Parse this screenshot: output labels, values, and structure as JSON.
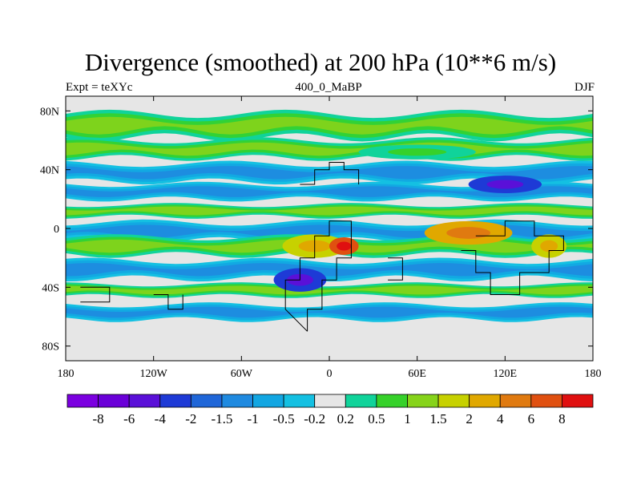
{
  "title": "Divergence (smoothed) at 200 hPa (10**6 m/s)",
  "subtitle_left": "Expt = teXYc",
  "subtitle_center": "400_0_MaBP",
  "subtitle_right": "DJF",
  "map": {
    "projection": "cylindrical-equidistant",
    "lon_range": [
      -180,
      180
    ],
    "lat_range": [
      -90,
      90
    ],
    "background_color": "#e6e6e6",
    "x_ticks": [
      {
        "value": -180,
        "label": "180"
      },
      {
        "value": -120,
        "label": "120W"
      },
      {
        "value": -60,
        "label": "60W"
      },
      {
        "value": 0,
        "label": "0"
      },
      {
        "value": 60,
        "label": "60E"
      },
      {
        "value": 120,
        "label": "120E"
      },
      {
        "value": 180,
        "label": "180"
      }
    ],
    "y_ticks": [
      {
        "value": 80,
        "label": "80N"
      },
      {
        "value": 40,
        "label": "40N"
      },
      {
        "value": 0,
        "label": "0"
      },
      {
        "value": -40,
        "label": "40S"
      },
      {
        "value": -80,
        "label": "80S"
      }
    ],
    "bands": [
      {
        "lat": [
          62,
          78
        ],
        "class": "pos"
      },
      {
        "lat": [
          48,
          60
        ],
        "class": "pos"
      },
      {
        "lat": [
          32,
          44
        ],
        "class": "neg"
      },
      {
        "lat": [
          20,
          30
        ],
        "class": "neg"
      },
      {
        "lat": [
          8,
          16
        ],
        "class": "pos"
      },
      {
        "lat": [
          -8,
          4
        ],
        "class": "neg"
      },
      {
        "lat": [
          -18,
          -6
        ],
        "class": "pos"
      },
      {
        "lat": [
          -34,
          -22
        ],
        "class": "neg"
      },
      {
        "lat": [
          -46,
          -38
        ],
        "class": "pos"
      },
      {
        "lat": [
          -62,
          -52
        ],
        "class": "neg"
      }
    ],
    "blobs": [
      {
        "lon": -10,
        "lat": -12,
        "rlon": 22,
        "rlat": 8,
        "level": 12
      },
      {
        "lon": 95,
        "lat": -3,
        "rlon": 30,
        "rlat": 8,
        "level": 13
      },
      {
        "lon": 150,
        "lat": -12,
        "rlon": 12,
        "rlat": 8,
        "level": 12
      },
      {
        "lon": 10,
        "lat": -12,
        "rlon": 10,
        "rlat": 6,
        "level": 15
      },
      {
        "lon": -20,
        "lat": -35,
        "rlon": 18,
        "rlat": 8,
        "level": 3
      },
      {
        "lon": 120,
        "lat": 30,
        "rlon": 25,
        "rlat": 6,
        "level": 3
      },
      {
        "lon": 60,
        "lat": 52,
        "rlon": 40,
        "rlat": 5,
        "level": 9
      }
    ]
  },
  "chart_data": {
    "type": "heatmap",
    "title": "Divergence (smoothed) at 200 hPa (10**6 m/s)",
    "xlabel": "",
    "ylabel": "",
    "xlim": [
      -180,
      180
    ],
    "ylim": [
      -90,
      90
    ],
    "colorbar_levels": [
      -8,
      -6,
      -4,
      -2,
      -1.5,
      -1,
      -0.5,
      -0.2,
      0.2,
      0.5,
      1,
      1.5,
      2,
      4,
      6,
      8
    ]
  },
  "colorbar": {
    "colors": [
      "#7b00e0",
      "#6a00d8",
      "#5a10d8",
      "#1e3ad6",
      "#1f66d8",
      "#1f8ae0",
      "#12a6e2",
      "#14c0e2",
      "#e6e6e6",
      "#10d39a",
      "#36d12a",
      "#86d31a",
      "#c7d100",
      "#e0a800",
      "#e07a10",
      "#e05010",
      "#e01010"
    ],
    "labels": [
      "-8",
      "-6",
      "-4",
      "-2",
      "-1.5",
      "-1",
      "-0.5",
      "-0.2",
      "0.2",
      "0.5",
      "1",
      "1.5",
      "2",
      "4",
      "6",
      "8"
    ]
  }
}
